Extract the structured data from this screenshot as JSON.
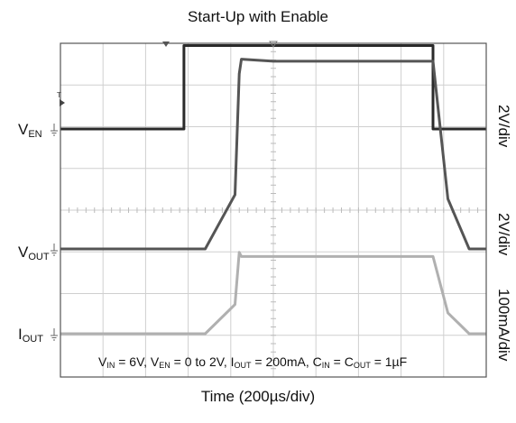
{
  "chart_data": {
    "type": "line",
    "title": "Start-Up with Enable",
    "xlabel": "Time (200µs/div)",
    "grid": true,
    "channels": [
      {
        "label_main": "V",
        "label_sub": "EN",
        "scale": "2V/div"
      },
      {
        "label_main": "V",
        "label_sub": "OUT",
        "scale": "2V/div"
      },
      {
        "label_main": "I",
        "label_sub": "OUT",
        "scale": "100mA/div"
      }
    ],
    "conditions": {
      "vin_main": "V",
      "vin_sub": "IN",
      "vin_val": " = 6V, ",
      "ven_main": "V",
      "ven_sub": "EN",
      "ven_val": " = 0 to 2V, ",
      "iout_main": "I",
      "iout_sub": "OUT",
      "iout_val": " = 200mA, ",
      "cin_main": "C",
      "cin_sub": "IN",
      "cin_val": " = ",
      "cout_main": "C",
      "cout_sub": "OUT",
      "cout_val": " = 1µF"
    },
    "x_divisions": 10,
    "y_divisions": 8,
    "series": [
      {
        "x": [
          0,
          2.9,
          2.9,
          8.75,
          8.75,
          10
        ],
        "y": [
          0,
          0,
          2,
          2,
          0,
          0
        ]
      },
      {
        "x": [
          0,
          3.4,
          4.1,
          4.2,
          4.25,
          5,
          8.75,
          9.1,
          9.6,
          10
        ],
        "y": [
          0,
          0,
          1.3,
          4.2,
          4.55,
          4.5,
          4.5,
          1.2,
          0,
          0
        ]
      },
      {
        "x": [
          0,
          3.4,
          4.1,
          4.2,
          4.25,
          8.75,
          9.1,
          9.6,
          10
        ],
        "y": [
          0,
          0,
          0.7,
          1.95,
          1.85,
          1.85,
          0.5,
          0,
          0
        ]
      }
    ]
  }
}
